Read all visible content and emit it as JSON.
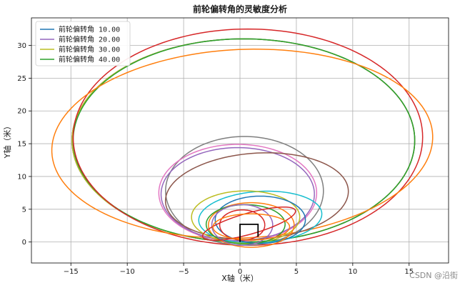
{
  "watermark": "CSDN @沿街",
  "chart_data": {
    "type": "line",
    "title": "前轮偏转角的灵敏度分析",
    "xlabel": "X轴（米）",
    "ylabel": "Y轴（米）",
    "xlim": [
      -18.5,
      18.5
    ],
    "ylim": [
      -3.2,
      34.2
    ],
    "xticks": [
      -15,
      -10,
      -5,
      0,
      5,
      10,
      15
    ],
    "yticks": [
      0,
      5,
      10,
      15,
      20,
      25,
      30
    ],
    "grid": true,
    "legend_position": "top-left",
    "legend": [
      {
        "label": "前轮偏转角 10.00",
        "color": "#1f77b4"
      },
      {
        "label": "前轮偏转角 20.00",
        "color": "#9467bd"
      },
      {
        "label": "前轮偏转角 30.00",
        "color": "#bcbd22"
      },
      {
        "label": "前轮偏转角 40.00",
        "color": "#2ca02c"
      }
    ],
    "series": [
      {
        "color": "#1f77b4",
        "cx": 0.3,
        "cy": 15.5,
        "rx": 15.2,
        "ry": 15.5,
        "rot": 0
      },
      {
        "color": "#9467bd",
        "cx": 0.3,
        "cy": 15.5,
        "rx": 15.2,
        "ry": 15.5,
        "rot": 0
      },
      {
        "color": "#bcbd22",
        "cx": 0.3,
        "cy": 15.5,
        "rx": 15.2,
        "ry": 15.5,
        "rot": 0
      },
      {
        "color": "#2ca02c",
        "cx": 0.35,
        "cy": 15.5,
        "rx": 15.15,
        "ry": 15.5,
        "rot": 0
      },
      {
        "color": "#d62728",
        "cx": 0.7,
        "cy": 16.0,
        "rx": 15.5,
        "ry": 16.5,
        "rot": 0
      },
      {
        "color": "#ff7f0e",
        "cx": 0.2,
        "cy": 15.0,
        "rx": 17.0,
        "ry": 14.3,
        "rot": 12
      },
      {
        "color": "#7f7f7f",
        "cx": 0.4,
        "cy": 7.8,
        "rx": 7.0,
        "ry": 8.3,
        "rot": 0
      },
      {
        "color": "#e377c2",
        "cx": -0.2,
        "cy": 7.5,
        "rx": 7.0,
        "ry": 7.4,
        "rot": 0
      },
      {
        "color": "#9467bd",
        "cx": -0.2,
        "cy": 7.3,
        "rx": 6.8,
        "ry": 7.1,
        "rot": 0
      },
      {
        "color": "#8c564b",
        "cx": 1.5,
        "cy": 7.0,
        "rx": 8.2,
        "ry": 6.5,
        "rot": 14
      },
      {
        "color": "#17becf",
        "cx": 1.8,
        "cy": 3.8,
        "rx": 5.5,
        "ry": 3.9,
        "rot": 10
      },
      {
        "color": "#bcbd22",
        "cx": 0.5,
        "cy": 3.8,
        "rx": 4.8,
        "ry": 4.0,
        "rot": 0
      },
      {
        "color": "#1f77b4",
        "cx": 1.8,
        "cy": 3.4,
        "rx": 4.0,
        "ry": 3.6,
        "rot": 0
      },
      {
        "color": "#ff7f0e",
        "cx": 1.0,
        "cy": 2.6,
        "rx": 3.8,
        "ry": 3.4,
        "rot": 0
      },
      {
        "color": "#2ca02c",
        "cx": 0.5,
        "cy": 2.7,
        "rx": 3.5,
        "ry": 3.0,
        "rot": 0
      },
      {
        "color": "#9467bd",
        "cx": 0.2,
        "cy": 2.6,
        "rx": 2.7,
        "ry": 3.1,
        "rot": 0
      },
      {
        "color": "#d62728",
        "cx": 0.2,
        "cy": 2.6,
        "rx": 2.0,
        "ry": 2.3,
        "rot": 0
      },
      {
        "color": "#d62728",
        "cx": 0.8,
        "cy": 2.8,
        "rx": 4.6,
        "ry": 1.5,
        "rot": 28
      },
      {
        "color": "#ff7f0e",
        "cx": 1.0,
        "cy": 2.3,
        "rx": 3.4,
        "ry": 2.0,
        "rot": 0
      }
    ],
    "box_path": {
      "color": "#000000",
      "points": [
        [
          0,
          0
        ],
        [
          0,
          2.7
        ],
        [
          1.6,
          2.7
        ],
        [
          1.6,
          0.8
        ]
      ]
    }
  }
}
